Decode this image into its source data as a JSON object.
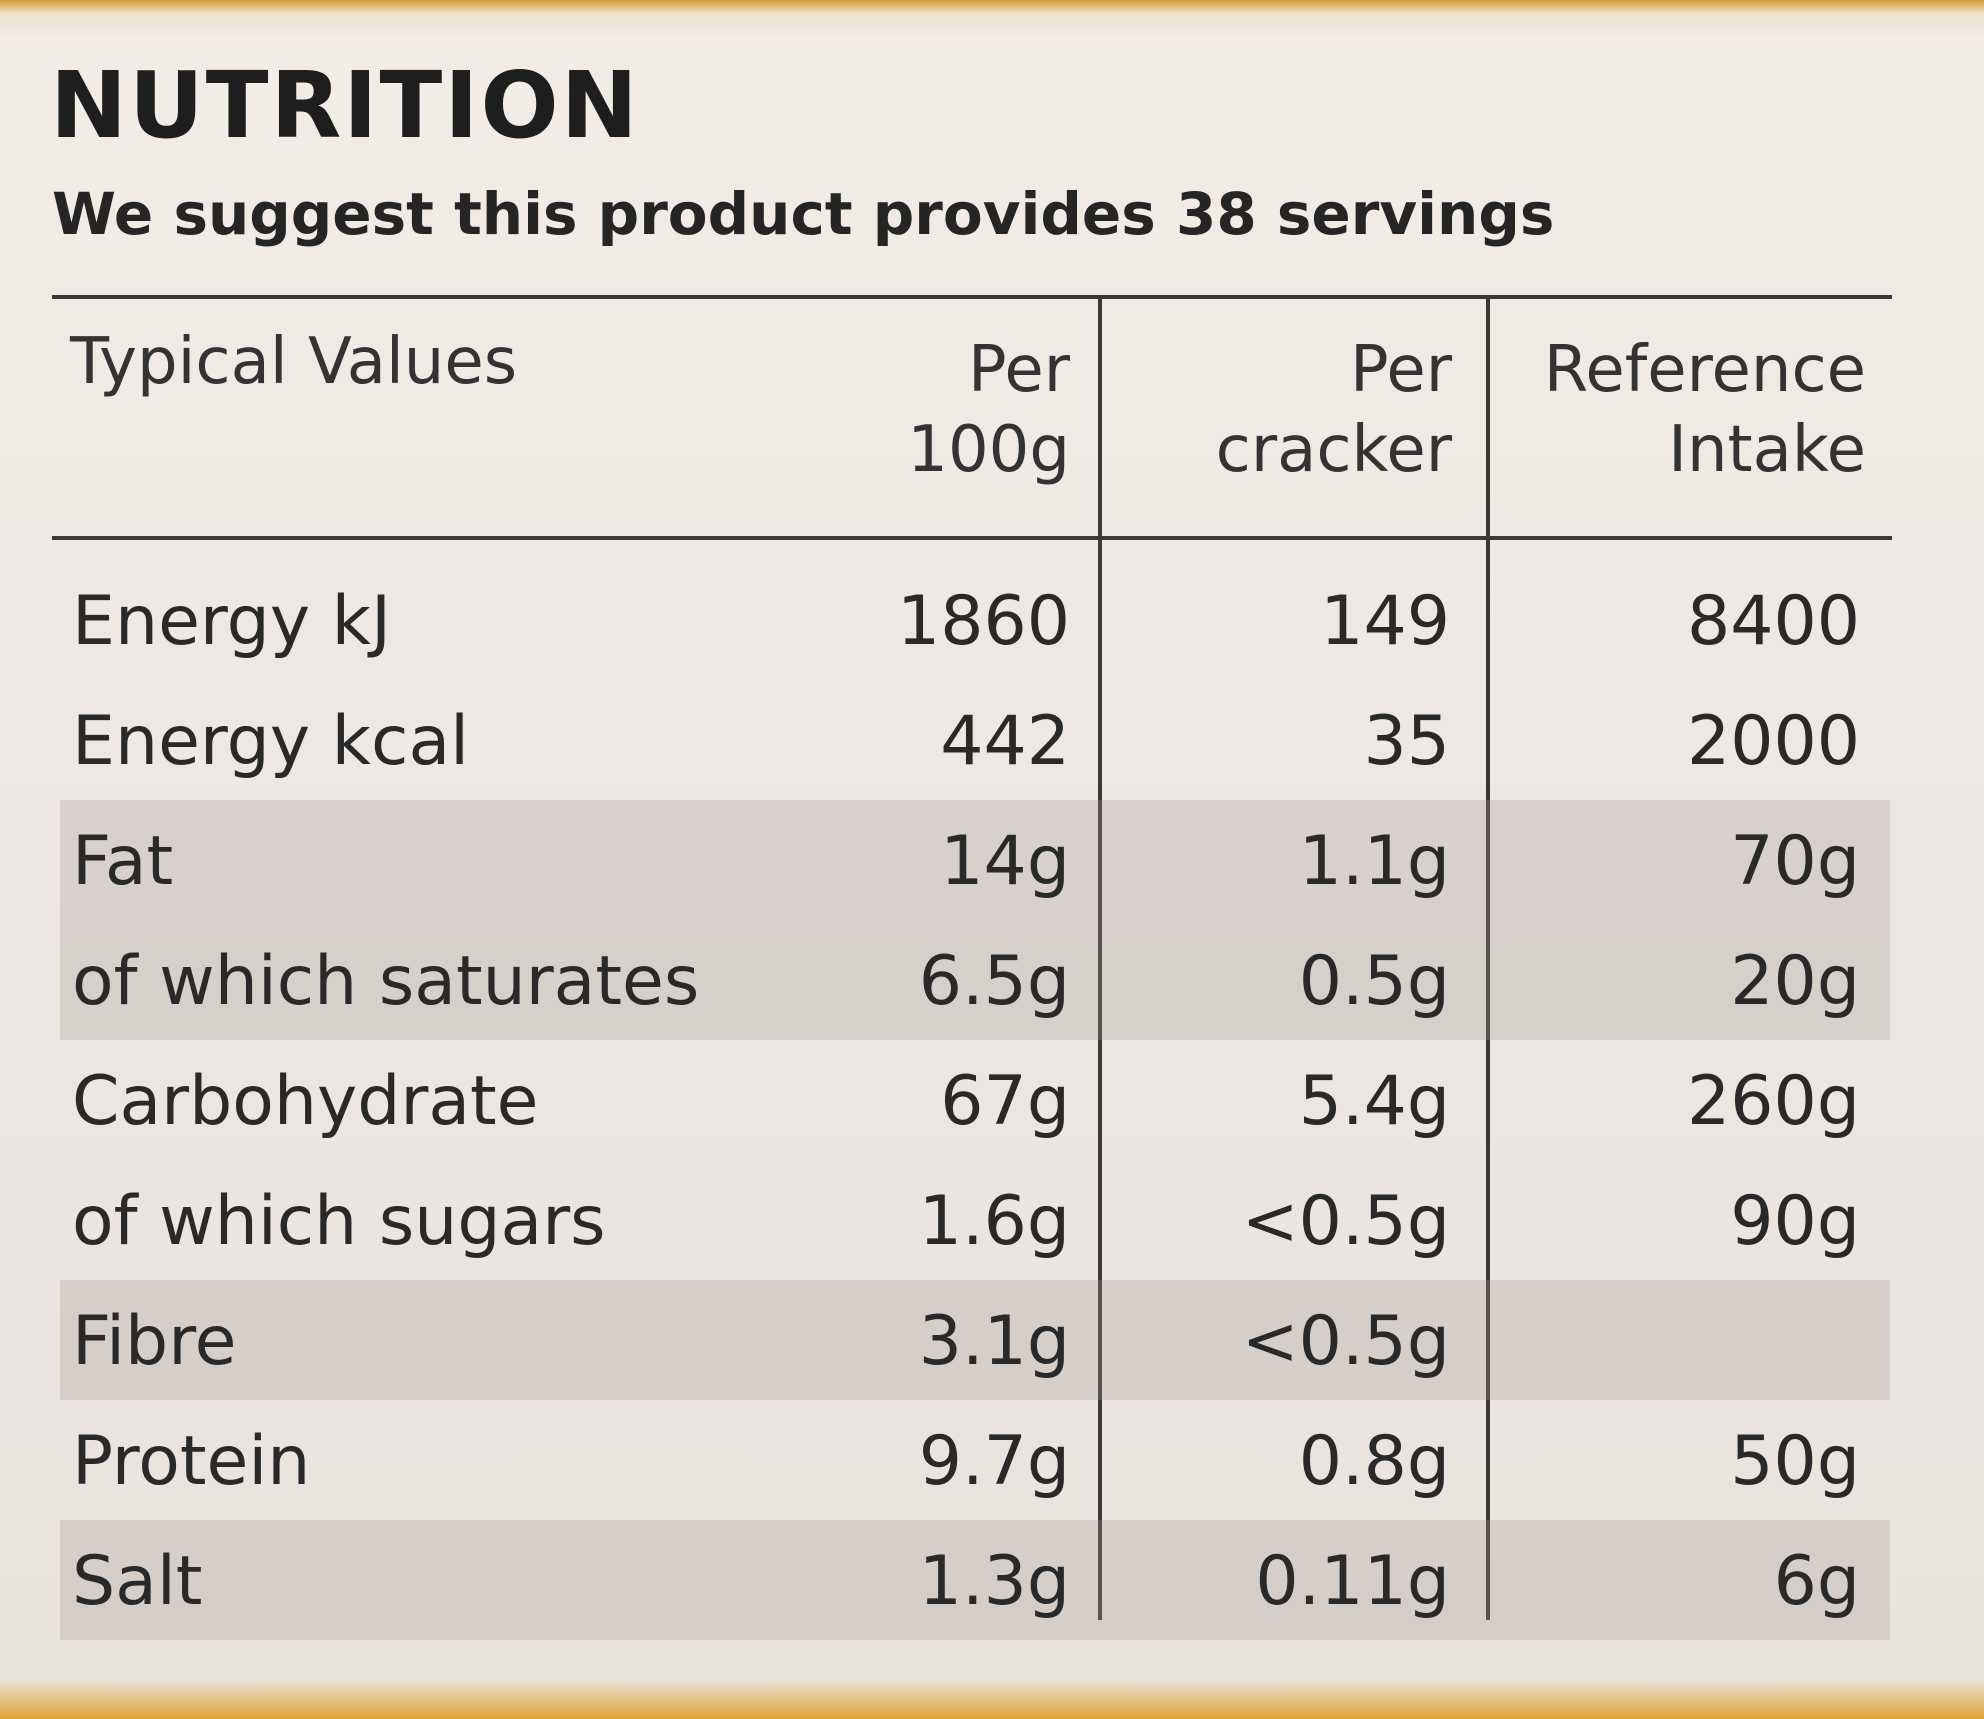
{
  "title": "NUTRITION",
  "subtitle": "We suggest this product provides 38 servings",
  "headers": {
    "label": "Typical Values",
    "per100g_line1": "Per",
    "per100g_line2": "100g",
    "perCracker_line1": "Per",
    "perCracker_line2": "cracker",
    "ref_line1": "Reference",
    "ref_line2": "Intake"
  },
  "rows": [
    {
      "label": "Energy kJ",
      "per100g": "1860",
      "perCracker": "149",
      "ref": "8400",
      "shaded": false
    },
    {
      "label": "Energy kcal",
      "per100g": "442",
      "perCracker": "35",
      "ref": "2000",
      "shaded": false
    },
    {
      "label": "Fat",
      "per100g": "14g",
      "perCracker": "1.1g",
      "ref": "70g",
      "shaded": true
    },
    {
      "label": "of which saturates",
      "per100g": "6.5g",
      "perCracker": "0.5g",
      "ref": "20g",
      "shaded": true
    },
    {
      "label": "Carbohydrate",
      "per100g": "67g",
      "perCracker": "5.4g",
      "ref": "260g",
      "shaded": false
    },
    {
      "label": "of which sugars",
      "per100g": "1.6g",
      "perCracker": "<0.5g",
      "ref": "90g",
      "shaded": false
    },
    {
      "label": "Fibre",
      "per100g": "3.1g",
      "perCracker": "<0.5g",
      "ref": "",
      "shaded": true
    },
    {
      "label": "Protein",
      "per100g": "9.7g",
      "perCracker": "0.8g",
      "ref": "50g",
      "shaded": false
    },
    {
      "label": "Salt",
      "per100g": "1.3g",
      "perCracker": "0.11g",
      "ref": "6g",
      "shaded": true
    }
  ]
}
